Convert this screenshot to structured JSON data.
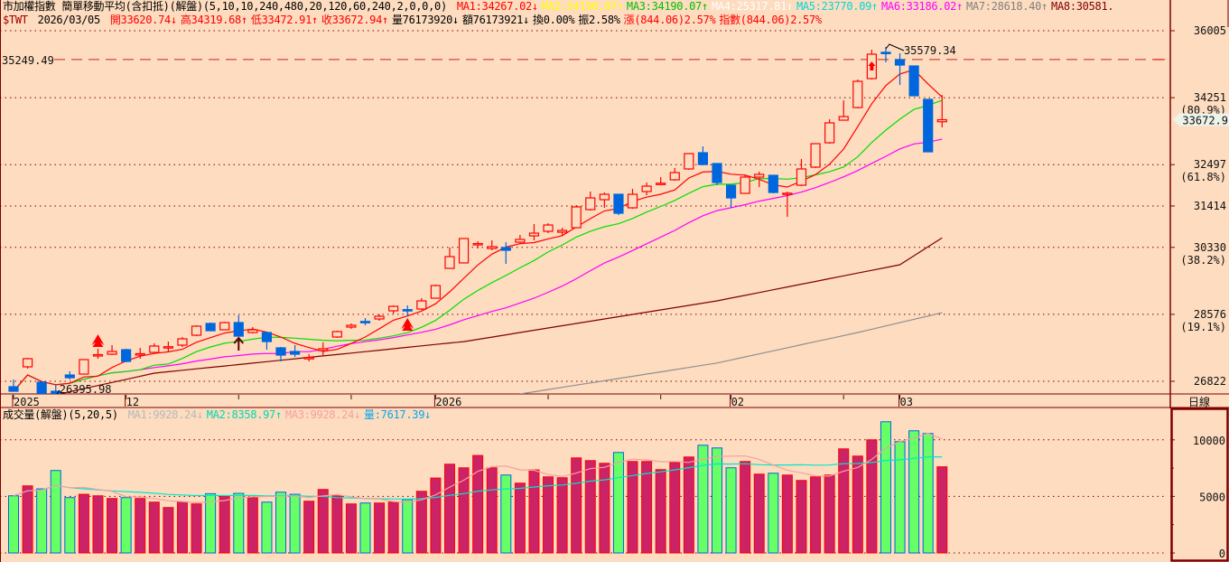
{
  "header": {
    "title": "市加權指數 簡單移動平均(含扣抵)(解盤)(5,10,10,240,480,20,120,60,240,2,0,0,0)",
    "ma": [
      {
        "label": "MA1:34267.02↓",
        "color": "#FF0000"
      },
      {
        "label": "MA2:34190.07↑",
        "color": "#FFFF00"
      },
      {
        "label": "MA3:34190.07↑",
        "color": "#00C000"
      },
      {
        "label": "MA4:25317.81↑",
        "color": "#FFFFFF"
      },
      {
        "label": "MA5:23770.09↑",
        "color": "#00D8D8"
      },
      {
        "label": "MA6:33186.02↑",
        "color": "#FF00FF"
      },
      {
        "label": "MA7:28618.40↑",
        "color": "#808080"
      },
      {
        "label": "MA8:30581.",
        "color": "#800000"
      }
    ],
    "symbol": "$TWT",
    "date": "2026/03/05",
    "quote": [
      {
        "label": "開33620.74↓",
        "color": "#FF0000"
      },
      {
        "label": "高34319.68↑",
        "color": "#FF0000"
      },
      {
        "label": "低33472.91↑",
        "color": "#FF0000"
      },
      {
        "label": "收33672.94↑",
        "color": "#FF0000"
      },
      {
        "label": "量76173920↓",
        "color": "#000000"
      },
      {
        "label": "額76173921↓",
        "color": "#000000"
      },
      {
        "label": "換0.00%",
        "color": "#000000"
      },
      {
        "label": "振2.58%",
        "color": "#000000"
      },
      {
        "label": "漲(844.06)2.57%",
        "color": "#FF0000"
      },
      {
        "label": "指數(844.06)2.57%",
        "color": "#FF0000"
      }
    ]
  },
  "volume_header": {
    "title": "成交量(解盤)(5,20,5)",
    "ma": [
      {
        "label": "MA1:9928.24↓",
        "color": "#B8B8B8"
      },
      {
        "label": "MA2:8358.97↑",
        "color": "#00D8B0"
      },
      {
        "label": "MA3:9928.24↓",
        "color": "#F4A0A0"
      },
      {
        "label": "量:7617.39↓",
        "color": "#00A8F0"
      }
    ]
  },
  "period_label": "日線",
  "colors": {
    "up": "#FF0000",
    "down": "#0066DD",
    "vol_up": "#CC2266",
    "vol_down": "#66FF66",
    "ma5": "#FF0000",
    "ma10": "#00E000",
    "ma20": "#FF00FF",
    "ma60": "#800000",
    "ma120": "#909090",
    "vol_ma5": "#F4A0A0",
    "vol_ma20": "#00E8C8",
    "grid": "#800000"
  },
  "chart_data": {
    "type": "candlestick",
    "price_axis": {
      "min": 26822,
      "max": 36005,
      "ticks": [
        {
          "value": 36005,
          "label": "36005"
        },
        {
          "value": 34251,
          "label": "34251",
          "pct": "(80.9%)"
        },
        {
          "value": 32497,
          "label": "32497",
          "pct": "(61.8%)"
        },
        {
          "value": 31414,
          "label": "31414"
        },
        {
          "value": 30330,
          "label": "30330",
          "pct": "(38.2%)"
        },
        {
          "value": 28576,
          "label": "28576",
          "pct": "(19.1%)"
        },
        {
          "value": 26822,
          "label": "26822"
        }
      ]
    },
    "last_price_label": "33672.9",
    "last_price": 33672.94,
    "reference_line": {
      "value": 35249.49,
      "label": "35249.49"
    },
    "high_annotation": {
      "index": 62,
      "value": 35579.34,
      "label": "35579.34"
    },
    "low_annotation": {
      "index": 3,
      "value": 26395.98,
      "label": "26395.98"
    },
    "x_labels": [
      {
        "index": 0,
        "label": "2025"
      },
      {
        "index": 8,
        "label": "12"
      },
      {
        "index": 30,
        "label": "2026"
      },
      {
        "index": 51,
        "label": "02"
      },
      {
        "index": 63,
        "label": "03"
      }
    ],
    "x_ticks": [
      0,
      8,
      16,
      24,
      30,
      38,
      46,
      51,
      59,
      63
    ],
    "ohlc": [
      [
        26680,
        26869,
        26561,
        26561
      ],
      [
        27201,
        27437,
        27153,
        27414
      ],
      [
        26798,
        26798,
        26467,
        26467
      ],
      [
        26561,
        26727,
        26396,
        26490
      ],
      [
        26987,
        27082,
        26869,
        26916
      ],
      [
        27011,
        27390,
        27011,
        27390
      ],
      [
        27500,
        27674,
        27414,
        27520
      ],
      [
        27532,
        27769,
        27508,
        27603
      ],
      [
        27650,
        27674,
        27319,
        27343
      ],
      [
        27530,
        27698,
        27414,
        27545
      ],
      [
        27579,
        27816,
        27579,
        27745
      ],
      [
        27715,
        27863,
        27579,
        27728
      ],
      [
        27769,
        27982,
        27721,
        27934
      ],
      [
        28029,
        28289,
        28005,
        28266
      ],
      [
        28337,
        28360,
        28147,
        28147
      ],
      [
        28171,
        28380,
        28171,
        28360
      ],
      [
        28360,
        28550,
        28005,
        28005
      ],
      [
        28100,
        28242,
        28076,
        28171
      ],
      [
        28100,
        28100,
        27650,
        27863
      ],
      [
        27698,
        27721,
        27343,
        27508
      ],
      [
        27603,
        27769,
        27461,
        27532
      ],
      [
        27430,
        27532,
        27343,
        27445
      ],
      [
        27627,
        27839,
        27508,
        27674
      ],
      [
        27982,
        28147,
        27958,
        28124
      ],
      [
        28242,
        28337,
        28195,
        28289
      ],
      [
        28390,
        28479,
        28289,
        28380
      ],
      [
        28455,
        28573,
        28408,
        28526
      ],
      [
        28668,
        28810,
        28597,
        28786
      ],
      [
        28700,
        28810,
        28526,
        28690
      ],
      [
        28715,
        28999,
        28692,
        28928
      ],
      [
        28999,
        29354,
        28999,
        29330
      ],
      [
        29780,
        30325,
        29780,
        30088
      ],
      [
        29923,
        30561,
        29923,
        30561
      ],
      [
        30420,
        30490,
        30301,
        30430
      ],
      [
        30301,
        30514,
        30254,
        30348
      ],
      [
        30325,
        30467,
        29899,
        30254
      ],
      [
        30467,
        30656,
        30419,
        30538
      ],
      [
        30632,
        30940,
        30514,
        30703
      ],
      [
        30751,
        30963,
        30703,
        30916
      ],
      [
        30727,
        30845,
        30632,
        30774
      ],
      [
        30845,
        31437,
        30845,
        31390
      ],
      [
        31319,
        31792,
        31295,
        31626
      ],
      [
        31579,
        31768,
        31366,
        31721
      ],
      [
        31721,
        31721,
        31177,
        31224
      ],
      [
        31366,
        31863,
        31342,
        31721
      ],
      [
        31792,
        32029,
        31697,
        31934
      ],
      [
        31995,
        32171,
        31958,
        32010
      ],
      [
        32100,
        32407,
        32076,
        32289
      ],
      [
        32384,
        32786,
        32360,
        32786
      ],
      [
        32810,
        32975,
        32478,
        32502
      ],
      [
        32526,
        32526,
        31958,
        32029
      ],
      [
        31958,
        31958,
        31366,
        31626
      ],
      [
        31745,
        32242,
        31745,
        32171
      ],
      [
        32171,
        32313,
        31910,
        32242
      ],
      [
        32218,
        32218,
        31745,
        31768
      ],
      [
        31750,
        31790,
        31129,
        31740
      ],
      [
        31958,
        32644,
        31934,
        32384
      ],
      [
        32431,
        33046,
        32407,
        33046
      ],
      [
        33070,
        33685,
        33046,
        33591
      ],
      [
        33662,
        34183,
        33662,
        33756
      ],
      [
        33993,
        34727,
        33970,
        34680
      ],
      [
        34751,
        35508,
        34727,
        35390
      ],
      [
        35440,
        35579.34,
        35177,
        35430
      ],
      [
        35248,
        35413,
        34585,
        35106
      ],
      [
        35082,
        35082,
        34301,
        34301
      ],
      [
        34206,
        34206,
        32833,
        32833
      ],
      [
        33620.74,
        34319.68,
        33472.91,
        33672.94
      ]
    ],
    "up": [
      0,
      1,
      0,
      0,
      0,
      1,
      1,
      1,
      0,
      1,
      1,
      1,
      1,
      1,
      0,
      1,
      0,
      1,
      0,
      0,
      0,
      1,
      1,
      1,
      1,
      0,
      1,
      1,
      0,
      1,
      1,
      1,
      1,
      1,
      1,
      0,
      1,
      1,
      1,
      1,
      1,
      1,
      1,
      0,
      1,
      1,
      1,
      1,
      1,
      0,
      0,
      0,
      1,
      1,
      0,
      1,
      1,
      1,
      1,
      1,
      1,
      1,
      0,
      0,
      0,
      0,
      1
    ],
    "ma60_points": [
      [
        3,
        26467
      ],
      [
        10,
        27035
      ],
      [
        32,
        27862
      ],
      [
        50,
        28928
      ],
      [
        63,
        29875
      ],
      [
        66,
        30581
      ]
    ],
    "ma120_points": [
      [
        36,
        26490
      ],
      [
        50,
        27300
      ],
      [
        60,
        28100
      ],
      [
        66,
        28618
      ]
    ],
    "signals": [
      {
        "index": 6,
        "type": "buy-red",
        "pos": "above"
      },
      {
        "index": 28,
        "type": "buy-red",
        "pos": "below"
      },
      {
        "index": 61,
        "type": "small-up",
        "pos": "below"
      },
      {
        "index": 16,
        "type": "arrow-dark",
        "pos": "below"
      }
    ],
    "volume": {
      "axis": {
        "max_label": "10000",
        "mid_label": "5000",
        "zero_label": "0"
      },
      "values": [
        5054,
        5932,
        5666,
        7288,
        4894,
        5187,
        5054,
        4815,
        4894,
        4815,
        4495,
        4017,
        4522,
        4336,
        5240,
        5054,
        5267,
        4894,
        4495,
        5373,
        5187,
        4575,
        5613,
        5054,
        4336,
        4416,
        4416,
        4495,
        4708,
        5453,
        6625,
        7847,
        7528,
        8618,
        7528,
        6889,
        6171,
        7342,
        6730,
        6650,
        8406,
        8166,
        7927,
        8884,
        8086,
        8086,
        7368,
        8007,
        8485,
        9523,
        9283,
        7528,
        8086,
        6969,
        7049,
        6889,
        6411,
        6730,
        6889,
        9204,
        8565,
        10002,
        11598,
        9842,
        10800,
        10560,
        7617
      ]
    }
  }
}
